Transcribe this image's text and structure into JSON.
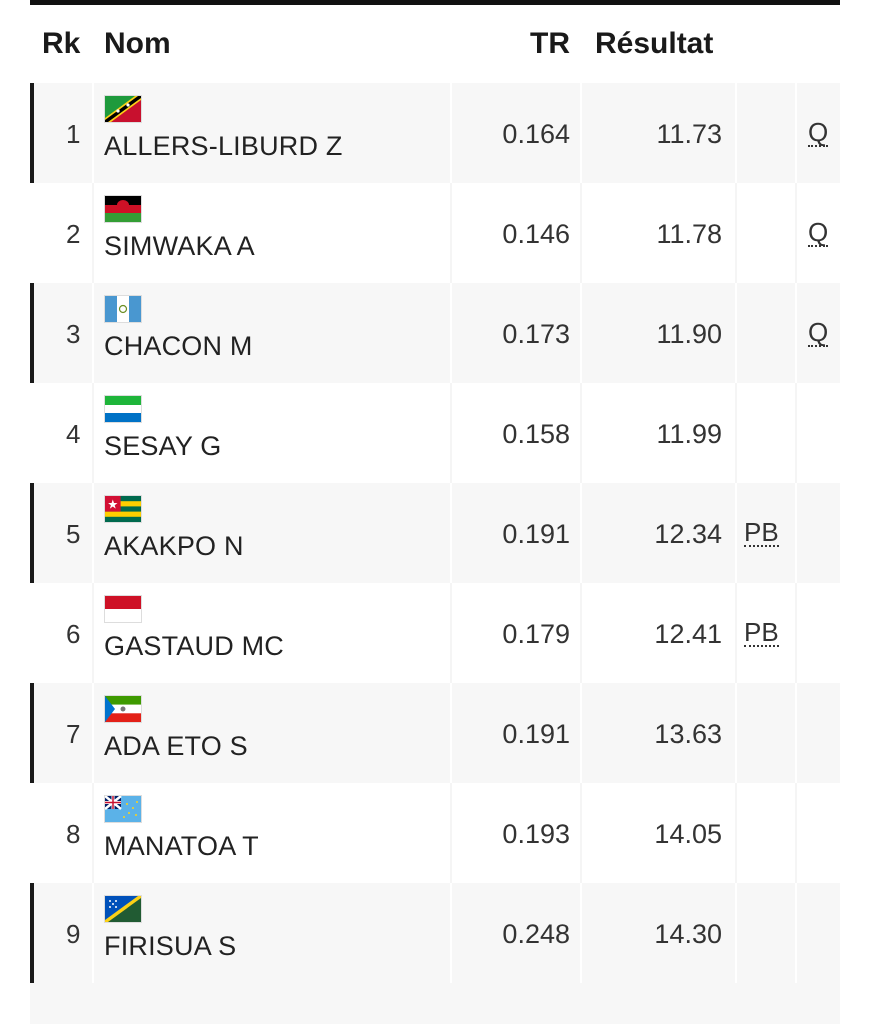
{
  "header": {
    "rk": "Rk",
    "nom": "Nom",
    "tr": "TR",
    "resultat": "Résultat"
  },
  "rows": [
    {
      "rk": "1",
      "name": "ALLERS-LIBURD Z",
      "tr": "0.164",
      "result": "11.73",
      "note": "",
      "qual": "Q",
      "flag": "saint-kitts-and-nevis-flag-icon"
    },
    {
      "rk": "2",
      "name": "SIMWAKA A",
      "tr": "0.146",
      "result": "11.78",
      "note": "",
      "qual": "Q",
      "flag": "malawi-flag-icon"
    },
    {
      "rk": "3",
      "name": "CHACON M",
      "tr": "0.173",
      "result": "11.90",
      "note": "",
      "qual": "Q",
      "flag": "guatemala-flag-icon"
    },
    {
      "rk": "4",
      "name": "SESAY G",
      "tr": "0.158",
      "result": "11.99",
      "note": "",
      "qual": "",
      "flag": "sierra-leone-flag-icon"
    },
    {
      "rk": "5",
      "name": "AKAKPO N",
      "tr": "0.191",
      "result": "12.34",
      "note": "PB",
      "qual": "",
      "flag": "togo-flag-icon"
    },
    {
      "rk": "6",
      "name": "GASTAUD MC",
      "tr": "0.179",
      "result": "12.41",
      "note": "PB",
      "qual": "",
      "flag": "monaco-flag-icon"
    },
    {
      "rk": "7",
      "name": "ADA ETO S",
      "tr": "0.191",
      "result": "13.63",
      "note": "",
      "qual": "",
      "flag": "equatorial-guinea-flag-icon"
    },
    {
      "rk": "8",
      "name": "MANATOA T",
      "tr": "0.193",
      "result": "14.05",
      "note": "",
      "qual": "",
      "flag": "tuvalu-flag-icon"
    },
    {
      "rk": "9",
      "name": "FIRISUA S",
      "tr": "0.248",
      "result": "14.30",
      "note": "",
      "qual": "",
      "flag": "solomon-islands-flag-icon"
    }
  ]
}
